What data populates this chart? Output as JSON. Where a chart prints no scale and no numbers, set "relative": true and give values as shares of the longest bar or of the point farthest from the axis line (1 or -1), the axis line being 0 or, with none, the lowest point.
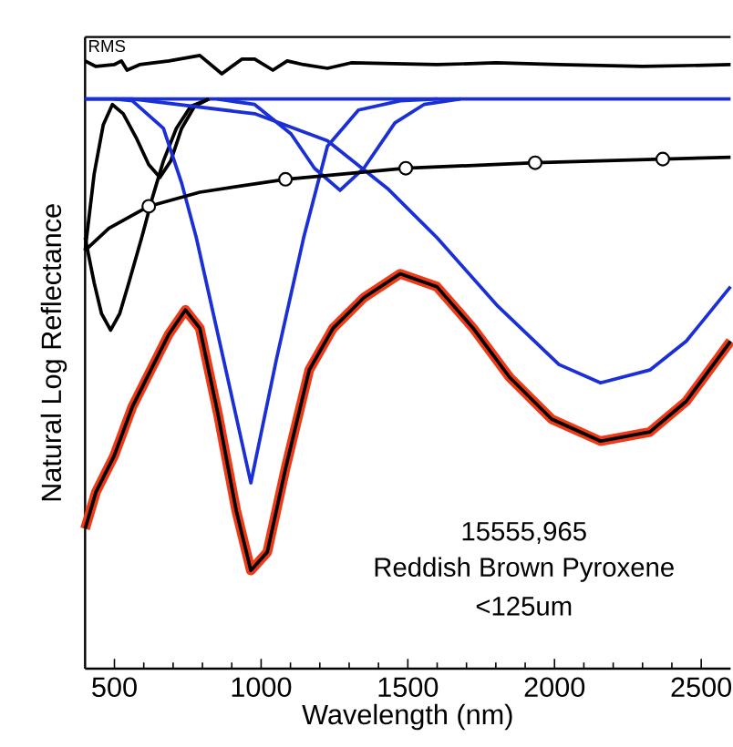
{
  "chart_data": {
    "type": "line",
    "xlabel": "Wavelength (nm)",
    "ylabel": "Natural Log Reflectance",
    "relative": true,
    "xlim": [
      400,
      2600
    ],
    "xticks": [
      500,
      1000,
      1500,
      2000,
      2500
    ],
    "legend": false,
    "grid": false,
    "annotations": [
      "15555,965",
      "Reddish Brown Pyroxene",
      "<125um"
    ],
    "series": [
      {
        "name": "RMS",
        "color": "#000000",
        "x": [
          400,
          437,
          499,
          524,
          543,
          586,
          686,
          791,
          866,
          934,
          978,
          1040,
          1089,
          1145,
          1226,
          1307,
          1599,
          1800,
          2015,
          2300,
          2600
        ],
        "values": [
          0.991,
          0.982,
          0.985,
          0.991,
          0.976,
          0.985,
          0.991,
          1.0,
          0.97,
          0.994,
          0.994,
          0.976,
          0.991,
          0.985,
          0.979,
          0.988,
          0.985,
          0.988,
          0.985,
          0.982,
          0.985
        ]
      },
      {
        "color": "#1a2fd6",
        "x": [
          400,
          2600
        ],
        "values": [
          0.929,
          0.929
        ]
      },
      {
        "color": "#000000",
        "x": [
          400,
          431,
          462,
          493,
          530,
          574,
          617,
          655,
          692,
          729,
          773,
          822
        ],
        "values": [
          0.682,
          0.807,
          0.887,
          0.92,
          0.905,
          0.866,
          0.822,
          0.801,
          0.828,
          0.881,
          0.917,
          0.929
        ]
      },
      {
        "color": "#000000",
        "x": [
          400,
          431,
          456,
          487,
          518,
          549,
          593,
          630,
          667,
          711,
          760,
          822
        ],
        "values": [
          0.703,
          0.629,
          0.579,
          0.552,
          0.579,
          0.629,
          0.703,
          0.769,
          0.828,
          0.881,
          0.917,
          0.929
        ]
      },
      {
        "color": "#1a2fd6",
        "x": [
          500,
          561,
          667,
          729,
          779,
          872,
          965,
          1052,
          1145,
          1226,
          1332,
          1474,
          1600
        ],
        "values": [
          0.929,
          0.926,
          0.881,
          0.792,
          0.703,
          0.504,
          0.303,
          0.504,
          0.703,
          0.852,
          0.911,
          0.926,
          0.929
        ]
      },
      {
        "color": "#1a2fd6",
        "x": [
          850,
          978,
          1102,
          1182,
          1269,
          1350,
          1456,
          1555,
          1679
        ],
        "values": [
          0.929,
          0.92,
          0.872,
          0.816,
          0.78,
          0.816,
          0.89,
          0.92,
          0.929
        ]
      },
      {
        "color": "#1a2fd6",
        "x": [
          400,
          561,
          978,
          1226,
          1431,
          1599,
          1803,
          2015,
          2157,
          2325,
          2449,
          2600
        ],
        "values": [
          0.929,
          0.929,
          0.905,
          0.861,
          0.783,
          0.703,
          0.593,
          0.496,
          0.466,
          0.487,
          0.534,
          0.623
        ]
      },
      {
        "color": "#000000",
        "x": [
          400,
          481,
          617,
          791,
          1083,
          1493,
          1934,
          2369,
          2600
        ],
        "values": [
          0.682,
          0.718,
          0.754,
          0.777,
          0.798,
          0.816,
          0.825,
          0.831,
          0.834
        ]
      },
      {
        "type": "scatter",
        "marker": "circle",
        "color": "#000000",
        "x": [
          617,
          1083,
          1493,
          1934,
          2369
        ],
        "values": [
          0.754,
          0.798,
          0.816,
          0.825,
          0.831
        ]
      },
      {
        "color": "#f03a17",
        "x": [
          400,
          437,
          499,
          561,
          624,
          686,
          742,
          791,
          853,
          915,
          965,
          1021,
          1083,
          1164,
          1245,
          1350,
          1474,
          1599,
          1723,
          1847,
          1990,
          2157,
          2325,
          2449,
          2600
        ],
        "values": [
          0.228,
          0.288,
          0.347,
          0.427,
          0.487,
          0.546,
          0.585,
          0.555,
          0.415,
          0.258,
          0.16,
          0.19,
          0.326,
          0.487,
          0.555,
          0.605,
          0.644,
          0.623,
          0.555,
          0.475,
          0.407,
          0.371,
          0.386,
          0.436,
          0.534
        ]
      },
      {
        "color": "#000000",
        "x": [
          400,
          437,
          499,
          561,
          624,
          686,
          742,
          791,
          853,
          915,
          965,
          1021,
          1083,
          1164,
          1245,
          1350,
          1474,
          1599,
          1723,
          1847,
          1990,
          2157,
          2325,
          2449,
          2600
        ],
        "values": [
          0.228,
          0.288,
          0.347,
          0.427,
          0.487,
          0.546,
          0.585,
          0.555,
          0.415,
          0.258,
          0.16,
          0.19,
          0.326,
          0.487,
          0.555,
          0.605,
          0.644,
          0.623,
          0.555,
          0.475,
          0.407,
          0.371,
          0.386,
          0.436,
          0.534
        ]
      }
    ]
  }
}
